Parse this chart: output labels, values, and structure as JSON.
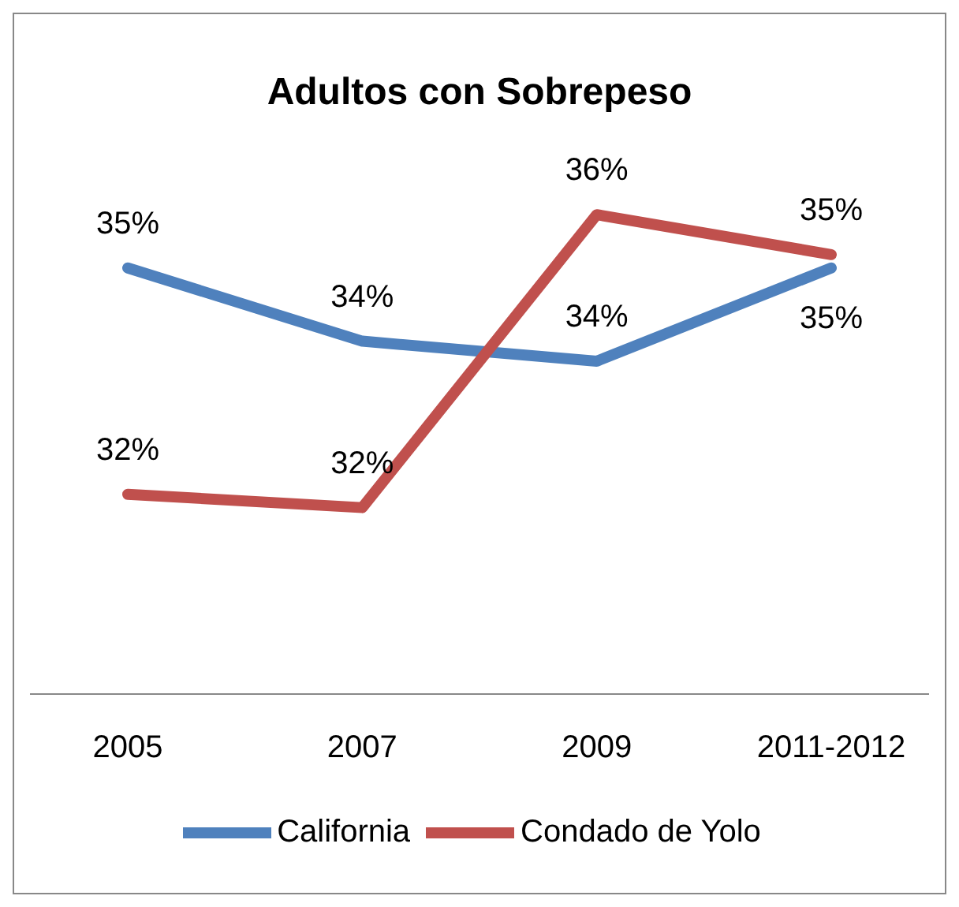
{
  "chart_data": {
    "type": "line",
    "title": "Adultos con Sobrepeso",
    "categories": [
      "2005",
      "2007",
      "2009",
      "2011-2012"
    ],
    "series": [
      {
        "name": "California",
        "color": "#4f81bd",
        "values": [
          35.2,
          34.1,
          33.8,
          35.2
        ],
        "value_labels": [
          "35%",
          "34%",
          "34%",
          "35%"
        ]
      },
      {
        "name": "Condado de Yolo",
        "color": "#c0504d",
        "values": [
          31.8,
          31.6,
          36.0,
          35.4
        ],
        "value_labels": [
          "32%",
          "32%",
          "36%",
          "35%"
        ]
      }
    ],
    "tick_labels": "x",
    "legend": "bottom",
    "marker": "none",
    "line_style": "solid"
  }
}
